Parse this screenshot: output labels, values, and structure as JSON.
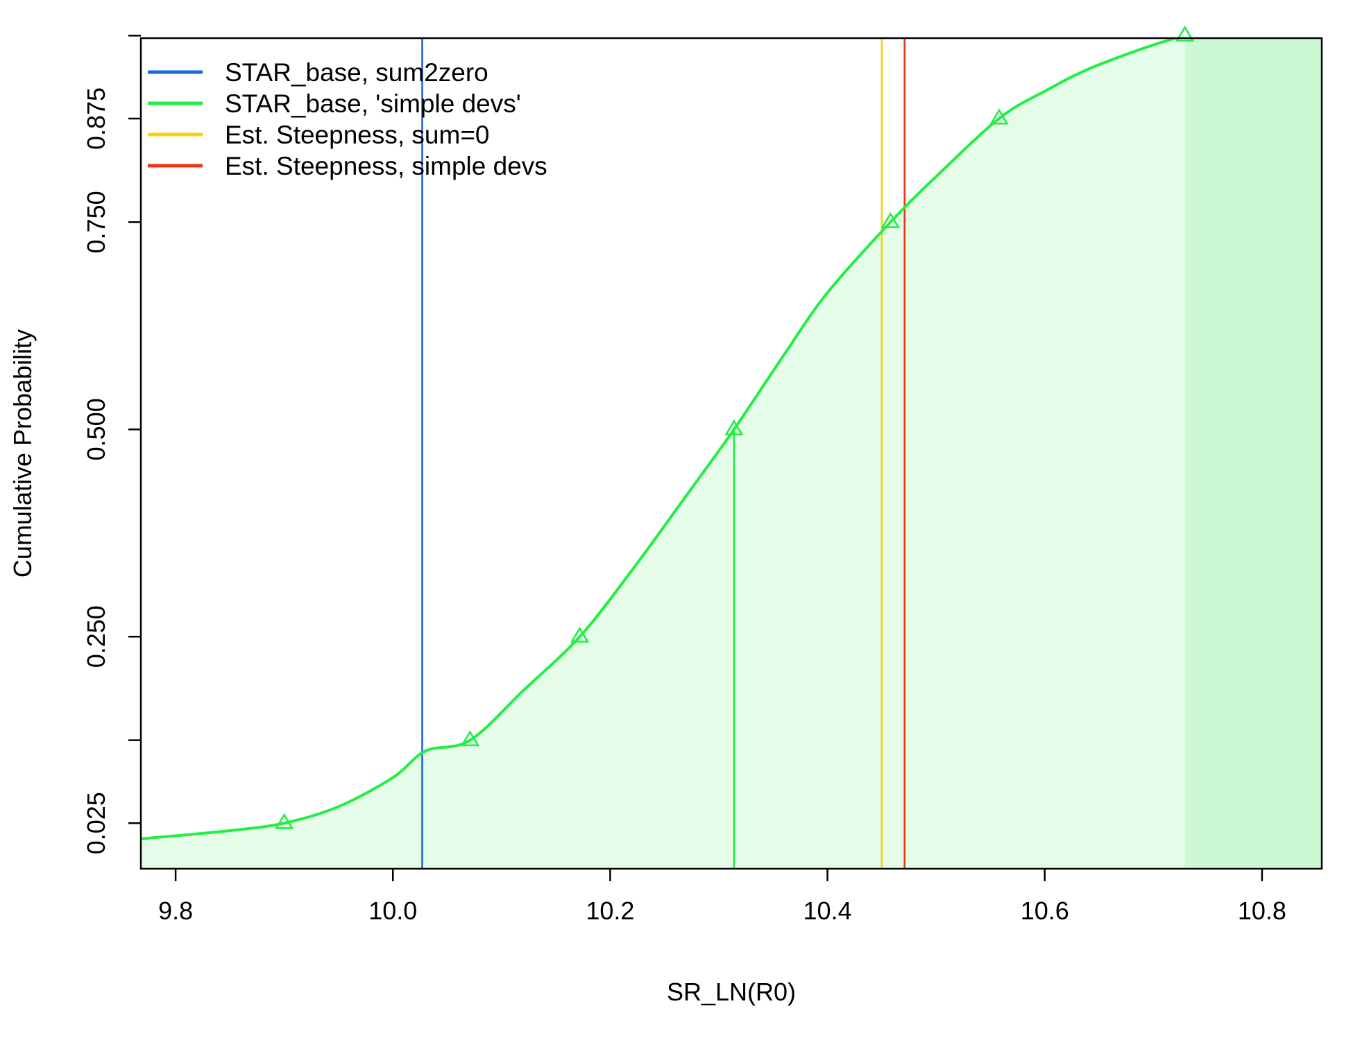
{
  "chart_data": {
    "type": "line",
    "title": "",
    "xlabel": "SR_LN(R0)",
    "ylabel": "Cumulative Probability",
    "xlim": [
      9.768,
      10.855
    ],
    "ylim": [
      -0.03,
      0.972
    ],
    "x_ticks": [
      9.8,
      10.0,
      10.2,
      10.4,
      10.6,
      10.8
    ],
    "x_tick_labels": [
      "9.8",
      "10.0",
      "10.2",
      "10.4",
      "10.6",
      "10.8"
    ],
    "y_ticks": [
      0.025,
      0.125,
      0.25,
      0.5,
      0.75,
      0.875,
      0.975
    ],
    "y_tick_labels": [
      "0.025",
      "",
      "0.250",
      "0.500",
      "0.750",
      "0.875",
      ""
    ],
    "grid": false,
    "legend_position": "top-left",
    "legend": [
      {
        "label": "STAR_base, sum2zero",
        "color": "#1a66dc"
      },
      {
        "label": "STAR_base, 'simple devs'",
        "color": "#22ee44"
      },
      {
        "label": "Est. Steepness, sum=0",
        "color": "#f5d40a"
      },
      {
        "label": "Est. Steepness, simple devs",
        "color": "#f03512"
      }
    ],
    "series": [
      {
        "color": "#22ee44",
        "fill_color": "#e5fce8",
        "tail_fill_color": "#ccf9d4",
        "tail_start_x": 10.729,
        "x": [
          9.768,
          9.85,
          9.9,
          9.95,
          10.0,
          10.03,
          10.071,
          10.12,
          10.172,
          10.22,
          10.27,
          10.314,
          10.36,
          10.4,
          10.458,
          10.5,
          10.558,
          10.6,
          10.65,
          10.729,
          10.8,
          10.855
        ],
        "y": [
          0.006,
          0.016,
          0.025,
          0.045,
          0.08,
          0.112,
          0.125,
          0.185,
          0.25,
          0.33,
          0.42,
          0.5,
          0.59,
          0.665,
          0.75,
          0.805,
          0.875,
          0.908,
          0.94,
          0.975,
          0.99,
          0.995
        ]
      }
    ],
    "quantile_markers": {
      "color": "#22ee44",
      "x": [
        9.9,
        10.071,
        10.172,
        10.314,
        10.458,
        10.558,
        10.729
      ],
      "y": [
        0.025,
        0.125,
        0.25,
        0.5,
        0.75,
        0.875,
        0.975
      ]
    },
    "median_line": {
      "x": 10.314,
      "y": 0.5,
      "color": "#22ee44"
    },
    "vertical_lines": [
      {
        "x": 10.027,
        "color": "#1a66dc"
      },
      {
        "x": 10.45,
        "color": "#f5d40a"
      },
      {
        "x": 10.471,
        "color": "#f03512"
      }
    ]
  }
}
